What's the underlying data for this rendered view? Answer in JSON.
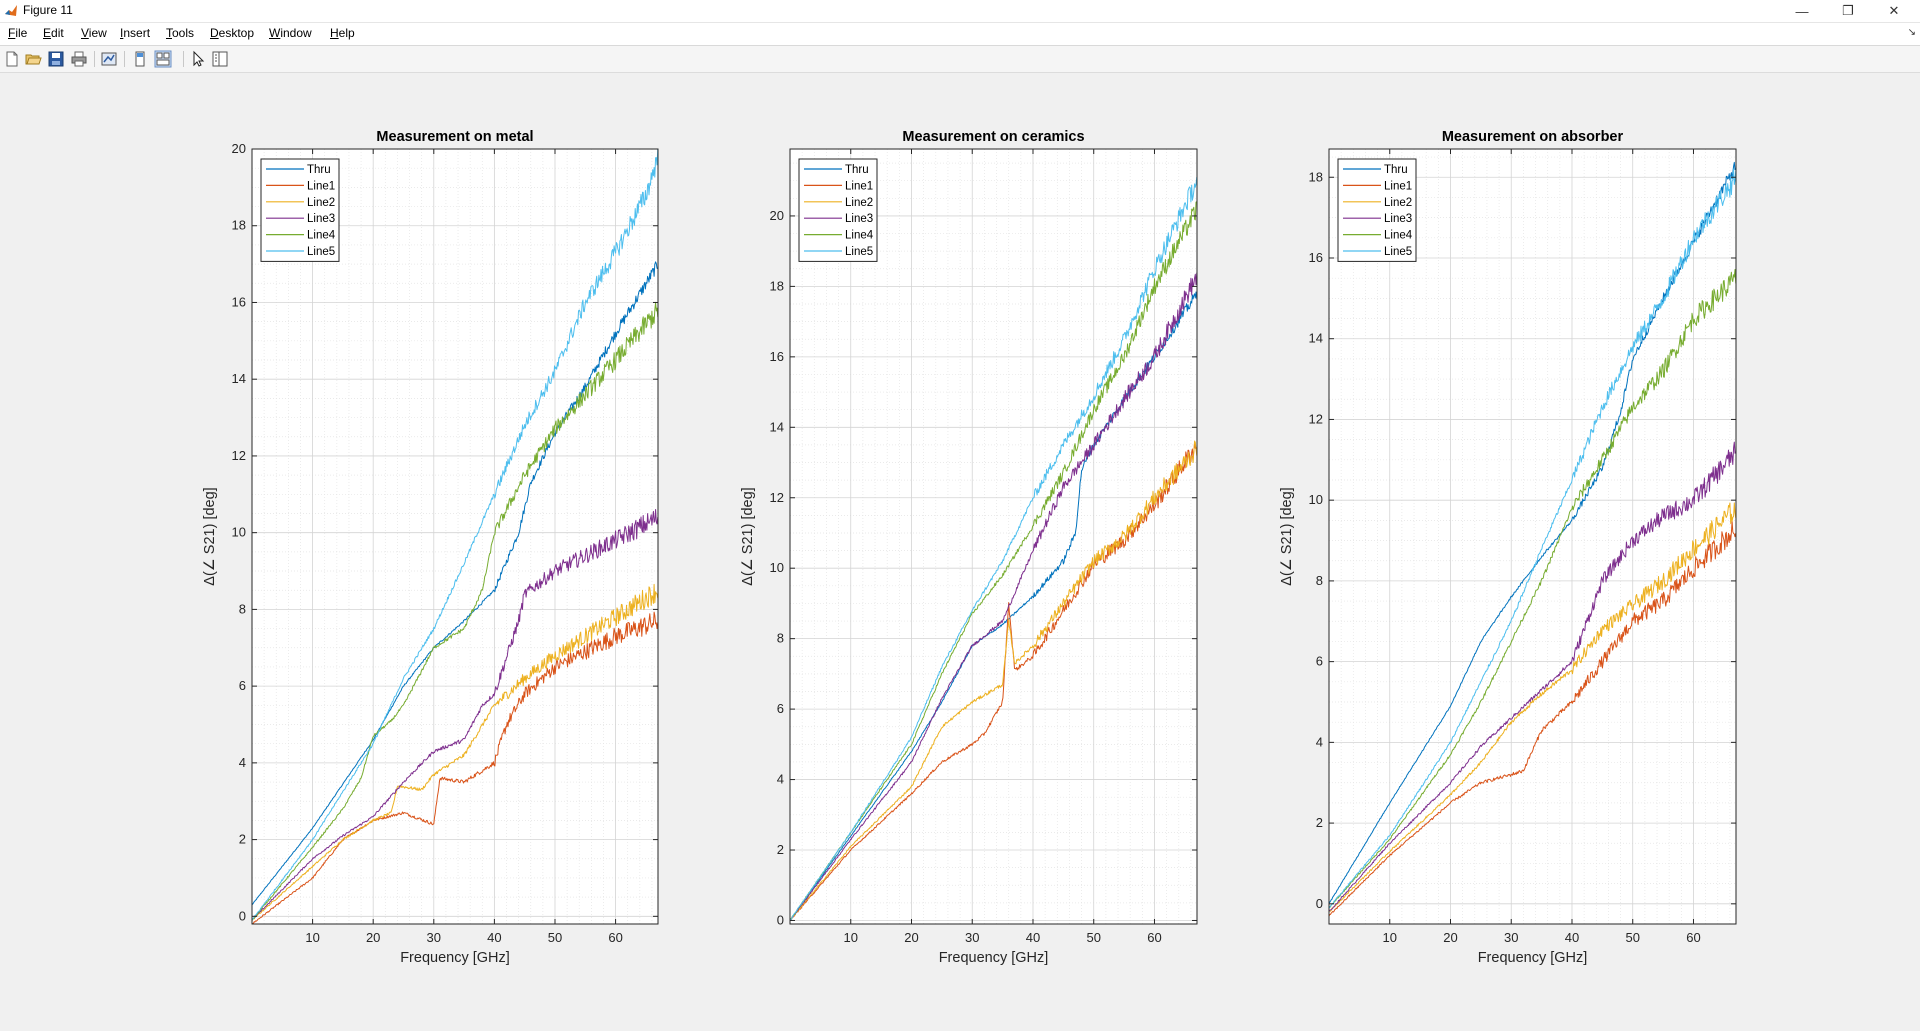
{
  "window": {
    "title": "Figure 11",
    "minimize_glyph": "—",
    "maximize_glyph": "❐",
    "close_glyph": "✕"
  },
  "menu": [
    "File",
    "Edit",
    "View",
    "Insert",
    "Tools",
    "Desktop",
    "Window",
    "Help"
  ],
  "toolbar_icons": [
    "new-figure-icon",
    "open-file-icon",
    "save-icon",
    "print-icon",
    "link-plot-icon",
    "hide-plot-tools-icon",
    "show-plot-tools-icon",
    "edit-plot-icon",
    "open-property-inspector-icon"
  ],
  "chart_data": [
    {
      "type": "line",
      "title": "Measurement on metal",
      "xlabel": "Frequency [GHz]",
      "ylabel": "Δ(∠ S21) [deg]",
      "xlim": [
        0,
        67
      ],
      "ylim": [
        -0.2,
        20
      ],
      "xticks": [
        10,
        20,
        30,
        40,
        50,
        60
      ],
      "yticks": [
        0,
        2,
        4,
        6,
        8,
        10,
        12,
        14,
        16,
        18,
        20
      ],
      "grid": true,
      "legend": "top-left",
      "series": [
        {
          "name": "Thru",
          "color": "#0072bd",
          "points": [
            [
              0,
              0.3
            ],
            [
              10,
              2.3
            ],
            [
              20,
              4.6
            ],
            [
              25,
              6.0
            ],
            [
              30,
              7.0
            ],
            [
              35,
              7.7
            ],
            [
              40,
              8.5
            ],
            [
              44,
              10.0
            ],
            [
              46,
              11.3
            ],
            [
              50,
              12.6
            ],
            [
              55,
              13.8
            ],
            [
              60,
              15.2
            ],
            [
              67,
              17.0
            ]
          ]
        },
        {
          "name": "Line1",
          "color": "#d95319",
          "points": [
            [
              0,
              -0.2
            ],
            [
              10,
              1.0
            ],
            [
              15,
              2.0
            ],
            [
              20,
              2.5
            ],
            [
              25,
              2.7
            ],
            [
              30,
              2.4
            ],
            [
              31,
              3.6
            ],
            [
              35,
              3.5
            ],
            [
              40,
              4.0
            ],
            [
              42,
              5.0
            ],
            [
              45,
              5.8
            ],
            [
              50,
              6.5
            ],
            [
              60,
              7.3
            ],
            [
              67,
              7.7
            ]
          ]
        },
        {
          "name": "Line2",
          "color": "#edb120",
          "points": [
            [
              0,
              -0.1
            ],
            [
              10,
              1.3
            ],
            [
              15,
              2.0
            ],
            [
              20,
              2.5
            ],
            [
              23,
              2.7
            ],
            [
              24,
              3.4
            ],
            [
              28,
              3.3
            ],
            [
              30,
              3.7
            ],
            [
              35,
              4.2
            ],
            [
              40,
              5.5
            ],
            [
              45,
              6.2
            ],
            [
              50,
              6.8
            ],
            [
              60,
              7.8
            ],
            [
              67,
              8.5
            ]
          ]
        },
        {
          "name": "Line3",
          "color": "#7e2f8e",
          "points": [
            [
              0,
              -0.1
            ],
            [
              10,
              1.5
            ],
            [
              15,
              2.1
            ],
            [
              20,
              2.6
            ],
            [
              25,
              3.5
            ],
            [
              30,
              4.3
            ],
            [
              35,
              4.6
            ],
            [
              38,
              5.5
            ],
            [
              40,
              5.8
            ],
            [
              44,
              7.7
            ],
            [
              45,
              8.4
            ],
            [
              50,
              9.0
            ],
            [
              60,
              9.8
            ],
            [
              67,
              10.4
            ]
          ]
        },
        {
          "name": "Line4",
          "color": "#77ac30",
          "points": [
            [
              0,
              -0.1
            ],
            [
              10,
              1.8
            ],
            [
              15,
              2.8
            ],
            [
              18,
              3.6
            ],
            [
              20,
              4.7
            ],
            [
              23,
              5.1
            ],
            [
              25,
              5.5
            ],
            [
              30,
              7.0
            ],
            [
              35,
              7.5
            ],
            [
              38,
              8.5
            ],
            [
              40,
              10.0
            ],
            [
              45,
              11.5
            ],
            [
              50,
              12.7
            ],
            [
              60,
              14.5
            ],
            [
              67,
              15.8
            ]
          ]
        },
        {
          "name": "Line5",
          "color": "#4dbeee",
          "points": [
            [
              0,
              -0.1
            ],
            [
              10,
              2.0
            ],
            [
              20,
              4.5
            ],
            [
              25,
              6.2
            ],
            [
              30,
              7.5
            ],
            [
              35,
              9.2
            ],
            [
              40,
              11.0
            ],
            [
              45,
              12.8
            ],
            [
              50,
              14.2
            ],
            [
              55,
              16.0
            ],
            [
              60,
              17.3
            ],
            [
              65,
              18.8
            ],
            [
              67,
              19.8
            ]
          ]
        }
      ]
    },
    {
      "type": "line",
      "title": "Measurement on ceramics",
      "xlabel": "Frequency [GHz]",
      "ylabel": "Δ(∠ S21) [deg]",
      "xlim": [
        0,
        67
      ],
      "ylim": [
        -0.1,
        21.9
      ],
      "xticks": [
        10,
        20,
        30,
        40,
        50,
        60
      ],
      "yticks": [
        0,
        2,
        4,
        6,
        8,
        10,
        12,
        14,
        16,
        18,
        20
      ],
      "grid": true,
      "legend": "top-left",
      "series": [
        {
          "name": "Thru",
          "color": "#0072bd",
          "points": [
            [
              0,
              0
            ],
            [
              10,
              2.4
            ],
            [
              20,
              4.8
            ],
            [
              25,
              6.2
            ],
            [
              30,
              7.8
            ],
            [
              35,
              8.4
            ],
            [
              40,
              9.2
            ],
            [
              45,
              10.2
            ],
            [
              47,
              11.0
            ],
            [
              48,
              12.8
            ],
            [
              50,
              13.5
            ],
            [
              55,
              14.8
            ],
            [
              60,
              16.0
            ],
            [
              67,
              17.8
            ]
          ]
        },
        {
          "name": "Line1",
          "color": "#d95319",
          "points": [
            [
              0,
              0
            ],
            [
              10,
              2.0
            ],
            [
              20,
              3.6
            ],
            [
              25,
              4.5
            ],
            [
              30,
              5.0
            ],
            [
              32,
              5.3
            ],
            [
              35,
              6.2
            ],
            [
              36,
              9.0
            ],
            [
              37,
              7.1
            ],
            [
              40,
              7.5
            ],
            [
              45,
              8.8
            ],
            [
              50,
              10.1
            ],
            [
              55,
              10.8
            ],
            [
              60,
              11.8
            ],
            [
              67,
              13.5
            ]
          ]
        },
        {
          "name": "Line2",
          "color": "#edb120",
          "points": [
            [
              0,
              0
            ],
            [
              10,
              2.1
            ],
            [
              20,
              3.8
            ],
            [
              25,
              5.5
            ],
            [
              30,
              6.2
            ],
            [
              35,
              6.7
            ],
            [
              36,
              8.5
            ],
            [
              37,
              7.3
            ],
            [
              40,
              7.8
            ],
            [
              45,
              9.0
            ],
            [
              50,
              10.2
            ],
            [
              55,
              10.9
            ],
            [
              60,
              12.0
            ],
            [
              67,
              13.4
            ]
          ]
        },
        {
          "name": "Line3",
          "color": "#7e2f8e",
          "points": [
            [
              0,
              0
            ],
            [
              10,
              2.3
            ],
            [
              20,
              4.5
            ],
            [
              25,
              6.3
            ],
            [
              30,
              7.8
            ],
            [
              35,
              8.5
            ],
            [
              40,
              10.5
            ],
            [
              45,
              12.3
            ],
            [
              50,
              13.5
            ],
            [
              55,
              14.8
            ],
            [
              60,
              16.0
            ],
            [
              67,
              18.3
            ]
          ]
        },
        {
          "name": "Line4",
          "color": "#77ac30",
          "points": [
            [
              0,
              0
            ],
            [
              10,
              2.5
            ],
            [
              20,
              5.0
            ],
            [
              25,
              7.0
            ],
            [
              30,
              8.7
            ],
            [
              35,
              9.8
            ],
            [
              40,
              11.2
            ],
            [
              45,
              12.7
            ],
            [
              50,
              14.5
            ],
            [
              55,
              16.0
            ],
            [
              60,
              18.0
            ],
            [
              67,
              20.2
            ]
          ]
        },
        {
          "name": "Line5",
          "color": "#4dbeee",
          "points": [
            [
              0,
              0
            ],
            [
              10,
              2.5
            ],
            [
              20,
              5.2
            ],
            [
              25,
              7.2
            ],
            [
              30,
              8.8
            ],
            [
              35,
              10.2
            ],
            [
              40,
              12.0
            ],
            [
              45,
              13.5
            ],
            [
              50,
              14.9
            ],
            [
              55,
              16.5
            ],
            [
              60,
              18.5
            ],
            [
              67,
              21.0
            ]
          ]
        }
      ]
    },
    {
      "type": "line",
      "title": "Measurement on absorber",
      "xlabel": "Frequency [GHz]",
      "ylabel": "Δ(∠ S21) [deg]",
      "xlim": [
        0,
        67
      ],
      "ylim": [
        -0.5,
        18.7
      ],
      "xticks": [
        10,
        20,
        30,
        40,
        50,
        60
      ],
      "yticks": [
        0,
        2,
        4,
        6,
        8,
        10,
        12,
        14,
        16,
        18
      ],
      "grid": true,
      "legend": "top-left",
      "series": [
        {
          "name": "Thru",
          "color": "#0072bd",
          "points": [
            [
              0,
              0
            ],
            [
              10,
              2.5
            ],
            [
              20,
              4.9
            ],
            [
              25,
              6.5
            ],
            [
              30,
              7.6
            ],
            [
              35,
              8.6
            ],
            [
              40,
              9.5
            ],
            [
              45,
              10.8
            ],
            [
              48,
              12.2
            ],
            [
              50,
              13.5
            ],
            [
              55,
              15.0
            ],
            [
              60,
              16.4
            ],
            [
              67,
              18.3
            ]
          ]
        },
        {
          "name": "Line1",
          "color": "#d95319",
          "points": [
            [
              0,
              -0.3
            ],
            [
              10,
              1.2
            ],
            [
              20,
              2.5
            ],
            [
              25,
              3.0
            ],
            [
              30,
              3.2
            ],
            [
              32,
              3.3
            ],
            [
              35,
              4.3
            ],
            [
              40,
              5.0
            ],
            [
              45,
              6.0
            ],
            [
              50,
              7.0
            ],
            [
              55,
              7.5
            ],
            [
              60,
              8.3
            ],
            [
              67,
              9.3
            ]
          ]
        },
        {
          "name": "Line2",
          "color": "#edb120",
          "points": [
            [
              0,
              -0.2
            ],
            [
              10,
              1.3
            ],
            [
              20,
              2.7
            ],
            [
              25,
              3.5
            ],
            [
              30,
              4.5
            ],
            [
              35,
              5.2
            ],
            [
              40,
              5.8
            ],
            [
              45,
              6.8
            ],
            [
              50,
              7.4
            ],
            [
              55,
              8.0
            ],
            [
              60,
              8.8
            ],
            [
              67,
              9.8
            ]
          ]
        },
        {
          "name": "Line3",
          "color": "#7e2f8e",
          "points": [
            [
              0,
              -0.2
            ],
            [
              10,
              1.5
            ],
            [
              20,
              3.0
            ],
            [
              25,
              3.9
            ],
            [
              30,
              4.6
            ],
            [
              35,
              5.3
            ],
            [
              40,
              6.0
            ],
            [
              45,
              8.0
            ],
            [
              50,
              9.0
            ],
            [
              55,
              9.6
            ],
            [
              60,
              10.0
            ],
            [
              67,
              11.2
            ]
          ]
        },
        {
          "name": "Line4",
          "color": "#77ac30",
          "points": [
            [
              0,
              -0.1
            ],
            [
              10,
              1.6
            ],
            [
              20,
              3.7
            ],
            [
              25,
              5.0
            ],
            [
              30,
              6.5
            ],
            [
              35,
              8.0
            ],
            [
              40,
              9.8
            ],
            [
              45,
              11.0
            ],
            [
              50,
              12.3
            ],
            [
              55,
              13.2
            ],
            [
              60,
              14.5
            ],
            [
              67,
              15.5
            ]
          ]
        },
        {
          "name": "Line5",
          "color": "#4dbeee",
          "points": [
            [
              0,
              -0.1
            ],
            [
              10,
              1.7
            ],
            [
              20,
              4.0
            ],
            [
              25,
              5.5
            ],
            [
              30,
              7.0
            ],
            [
              35,
              8.8
            ],
            [
              40,
              10.5
            ],
            [
              45,
              12.3
            ],
            [
              50,
              13.8
            ],
            [
              55,
              15.0
            ],
            [
              60,
              16.5
            ],
            [
              67,
              18.0
            ]
          ]
        }
      ]
    }
  ]
}
